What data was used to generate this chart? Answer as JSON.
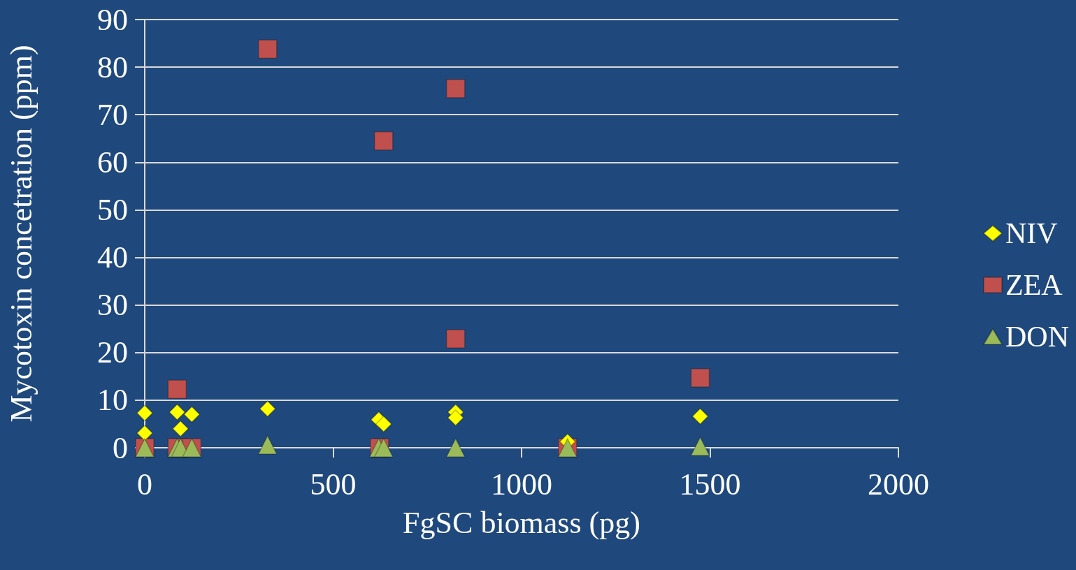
{
  "chart_data": {
    "type": "scatter",
    "xlabel": "FgSC biomass (pg)",
    "ylabel": "Mycotoxin concetration (ppm)",
    "xlim": [
      0,
      2000
    ],
    "xticks": [
      0,
      500,
      1000,
      1500,
      2000
    ],
    "ylim": [
      0,
      90
    ],
    "yticks": [
      0,
      10,
      20,
      30,
      40,
      50,
      60,
      70,
      80,
      90
    ],
    "grid": "y",
    "legend": "right",
    "series": [
      {
        "name": "NIV",
        "color": "#ffff00",
        "marker": "diamond",
        "x": [
          0,
          0,
          86,
          125,
          95,
          326,
          621,
          634,
          825,
          825,
          1122,
          1474
        ],
        "values": [
          7.3,
          3.1,
          7.5,
          7.0,
          4.0,
          8.2,
          5.9,
          5.0,
          7.5,
          6.3,
          1.3,
          6.6
        ]
      },
      {
        "name": "ZEA",
        "color": "#c0504d",
        "marker": "square",
        "x": [
          0,
          86,
          86,
          125,
          326,
          634,
          825,
          825,
          623,
          1122,
          1474
        ],
        "values": [
          0,
          12.3,
          0,
          0,
          83.8,
          64.5,
          75.5,
          22.9,
          0,
          0,
          14.7
        ]
      },
      {
        "name": "DON",
        "color": "#9bbb59",
        "marker": "triangle",
        "x": [
          0,
          86,
          95,
          125,
          326,
          621,
          634,
          825,
          1122,
          1474
        ],
        "values": [
          0,
          0,
          0,
          0,
          0.6,
          0,
          0,
          0,
          0,
          0.3
        ]
      }
    ]
  }
}
